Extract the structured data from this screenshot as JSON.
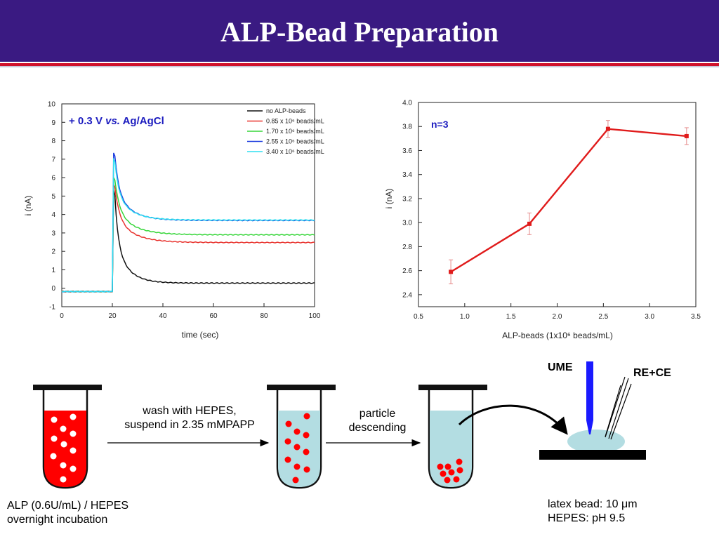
{
  "slide": {
    "title": "ALP-Bead Preparation",
    "colors": {
      "header": "#3a1a82",
      "rule": "#d0112b",
      "tube_red": "#ff0000",
      "tube_blue": "#b3dde2"
    }
  },
  "chart_data": [
    {
      "type": "line",
      "xlabel": "time (sec)",
      "ylabel": "i (nA)",
      "xlim": [
        0,
        100
      ],
      "ylim": [
        -1,
        10
      ],
      "xticks": [
        "0",
        "20",
        "40",
        "60",
        "80",
        "100"
      ],
      "yticks": [
        "-1",
        "0",
        "1",
        "2",
        "3",
        "4",
        "5",
        "6",
        "7",
        "8",
        "9",
        "10"
      ],
      "annotation": {
        "prefix": "+ 0.3 V ",
        "italic": "vs.",
        "suffix": " Ag/AgCl"
      },
      "legend_placement": "top-right",
      "series": [
        {
          "name": "no ALP-beads",
          "color": "#111111",
          "peak": 5.3,
          "plateau": 0.28,
          "tau": 5
        },
        {
          "name": "0.85 x 10⁶ beads/mL",
          "color": "#e8332e",
          "peak": 5.6,
          "plateau": 2.48,
          "tau": 7
        },
        {
          "name": "1.70 x 10⁶ beads/mL",
          "color": "#37d63a",
          "peak": 6.0,
          "plateau": 2.9,
          "tau": 7
        },
        {
          "name": "2.55 x 10⁶ beads/mL",
          "color": "#1f3fdf",
          "peak": 7.35,
          "plateau": 3.68,
          "tau": 6
        },
        {
          "name": "3.40 x 10⁶ beads/mL",
          "color": "#2fdff0",
          "peak": 7.0,
          "plateau": 3.7,
          "tau": 6
        }
      ],
      "baseline": -0.18,
      "step_time": 20.5
    },
    {
      "type": "line",
      "xlabel": "ALP-beads (1x10⁶ beads/mL)",
      "ylabel": "i (nA)",
      "xlim": [
        0.5,
        3.5
      ],
      "ylim": [
        2.3,
        4.0
      ],
      "xticks": [
        "0.5",
        "1.0",
        "1.5",
        "2.0",
        "2.5",
        "3.0",
        "3.5"
      ],
      "yticks": [
        "2.4",
        "2.6",
        "2.8",
        "3.0",
        "3.2",
        "3.4",
        "3.6",
        "3.8",
        "4.0"
      ],
      "annotation": "n=3",
      "series": [
        {
          "color": "#e01b1b",
          "x": [
            0.85,
            1.7,
            2.55,
            3.4
          ],
          "y": [
            2.59,
            2.99,
            3.78,
            3.72
          ],
          "err": [
            0.1,
            0.09,
            0.07,
            0.07
          ]
        }
      ]
    }
  ],
  "diagram": {
    "step1_label": "wash with HEPES,",
    "step1_label2": "suspend in 2.35 mMPAPP",
    "step2_label": "particle",
    "step2_label2": "descending",
    "tube1_caption": "ALP (0.6U/mL) / HEPES",
    "tube1_caption2": "overnight incubation",
    "ume_label": "UME",
    "rece_label": "RE+CE",
    "bead_note_prefix": "latex bead: 10 ",
    "bead_note_unit": "μm",
    "hepes_note": "HEPES: pH 9.5"
  }
}
